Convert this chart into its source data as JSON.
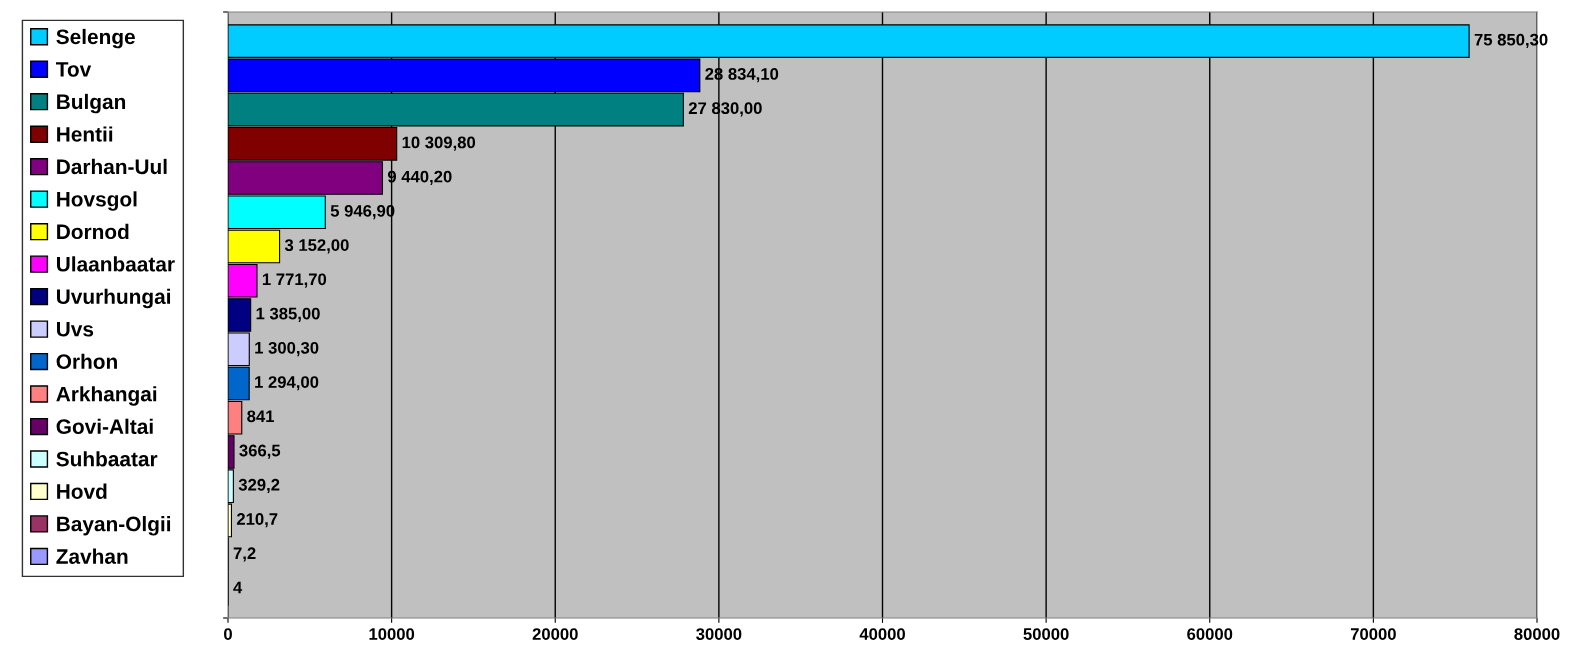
{
  "chart_data": {
    "type": "bar",
    "orientation": "horizontal",
    "categories": [
      null
    ],
    "series": [
      {
        "name": "Selenge",
        "color": "#00ccff",
        "values": [
          75850.3
        ],
        "value_labels": [
          "75 850,30"
        ]
      },
      {
        "name": "Tov",
        "color": "#0000ff",
        "values": [
          28834.1
        ],
        "value_labels": [
          "28 834,10"
        ]
      },
      {
        "name": "Bulgan",
        "color": "#008080",
        "values": [
          27830.0
        ],
        "value_labels": [
          "27 830,00"
        ]
      },
      {
        "name": "Hentii",
        "color": "#800000",
        "values": [
          10309.8
        ],
        "value_labels": [
          "10 309,80"
        ]
      },
      {
        "name": "Darhan-Uul",
        "color": "#800080",
        "values": [
          9440.2
        ],
        "value_labels": [
          "9 440,20"
        ]
      },
      {
        "name": "Hovsgol",
        "color": "#00ffff",
        "values": [
          5946.9
        ],
        "value_labels": [
          "5 946,90"
        ]
      },
      {
        "name": "Dornod",
        "color": "#ffff00",
        "values": [
          3152.0
        ],
        "value_labels": [
          "3 152,00"
        ]
      },
      {
        "name": "Ulaanbaatar",
        "color": "#ff00ff",
        "values": [
          1771.7
        ],
        "value_labels": [
          "1 771,70"
        ]
      },
      {
        "name": "Uvurhungai",
        "color": "#000080",
        "values": [
          1385.0
        ],
        "value_labels": [
          "1 385,00"
        ]
      },
      {
        "name": "Uvs",
        "color": "#ccccff",
        "values": [
          1300.3
        ],
        "value_labels": [
          "1 300,30"
        ]
      },
      {
        "name": "Orhon",
        "color": "#0066cc",
        "values": [
          1294.0
        ],
        "value_labels": [
          "1 294,00"
        ]
      },
      {
        "name": "Arkhangai",
        "color": "#ff8080",
        "values": [
          841
        ],
        "value_labels": [
          "841"
        ]
      },
      {
        "name": "Govi-Altai",
        "color": "#660066",
        "values": [
          366.5
        ],
        "value_labels": [
          "366,5"
        ]
      },
      {
        "name": "Suhbaatar",
        "color": "#ccffff",
        "values": [
          329.2
        ],
        "value_labels": [
          "329,2"
        ]
      },
      {
        "name": "Hovd",
        "color": "#ffffcc",
        "values": [
          210.7
        ],
        "value_labels": [
          "210,7"
        ]
      },
      {
        "name": "Bayan-Olgii",
        "color": "#993366",
        "values": [
          7.2
        ],
        "value_labels": [
          "7,2"
        ]
      },
      {
        "name": "Zavhan",
        "color": "#9999ff",
        "values": [
          4
        ],
        "value_labels": [
          "4"
        ]
      }
    ],
    "xlim": [
      0,
      80000
    ],
    "xticks": [
      0,
      10000,
      20000,
      30000,
      40000,
      50000,
      60000,
      70000,
      80000
    ],
    "grid": "x",
    "legend": "left"
  }
}
